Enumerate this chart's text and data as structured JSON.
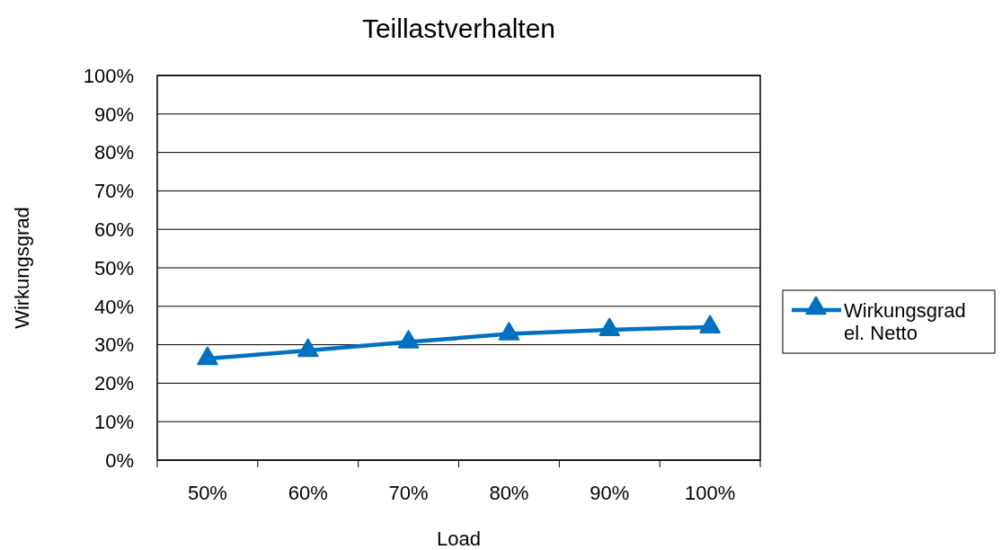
{
  "chart_data": {
    "type": "line",
    "title": "Teillastverhalten",
    "xlabel": "Load",
    "ylabel": "Wirkungsgrad",
    "categories": [
      "50%",
      "60%",
      "70%",
      "80%",
      "90%",
      "100%"
    ],
    "series": [
      {
        "name": "Wirkungsgrad el. Netto",
        "color": "#0070c0",
        "values": [
          26.4,
          28.5,
          30.7,
          32.8,
          33.9,
          34.6
        ]
      }
    ],
    "ylim": [
      0,
      100
    ],
    "yticks": [
      {
        "value": 0,
        "label": "0%"
      },
      {
        "value": 10,
        "label": "10%"
      },
      {
        "value": 20,
        "label": "20%"
      },
      {
        "value": 30,
        "label": "30%"
      },
      {
        "value": 40,
        "label": "40%"
      },
      {
        "value": 50,
        "label": "50%"
      },
      {
        "value": 60,
        "label": "60%"
      },
      {
        "value": 70,
        "label": "70%"
      },
      {
        "value": 80,
        "label": "80%"
      },
      {
        "value": 90,
        "label": "90%"
      },
      {
        "value": 100,
        "label": "100%"
      }
    ],
    "grid": "y",
    "legend": "right",
    "marker": "triangle",
    "line_style": "solid"
  }
}
